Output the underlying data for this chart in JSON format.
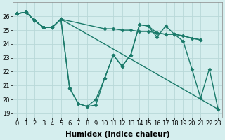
{
  "background_color": "#d5eeee",
  "grid_color": "#b8d8d8",
  "line_color": "#1a7a6a",
  "marker_style": "D",
  "marker_size": 2.5,
  "linewidth": 1.0,
  "xlabel": "Humidex (Indice chaleur)",
  "xlabel_fontsize": 7.5,
  "tick_fontsize": 6.0,
  "ylim": [
    18.7,
    27.0
  ],
  "xlim": [
    -0.5,
    23.5
  ],
  "yticks": [
    19,
    20,
    21,
    22,
    23,
    24,
    25,
    26
  ],
  "xticks": [
    0,
    1,
    2,
    3,
    4,
    5,
    6,
    7,
    8,
    9,
    10,
    11,
    12,
    13,
    14,
    15,
    16,
    17,
    18,
    19,
    20,
    21,
    22,
    23
  ],
  "series": [
    {
      "x": [
        0,
        1,
        2,
        3,
        4,
        5,
        23
      ],
      "y": [
        26.2,
        26.3,
        25.7,
        25.2,
        25.2,
        25.8,
        19.3
      ]
    },
    {
      "x": [
        0,
        1,
        2,
        3,
        4,
        5,
        10,
        11,
        12,
        13,
        14,
        15,
        16,
        17,
        18,
        19,
        20,
        21
      ],
      "y": [
        26.2,
        26.3,
        25.7,
        25.2,
        25.2,
        25.8,
        25.1,
        25.1,
        25.0,
        25.0,
        24.9,
        24.9,
        24.8,
        24.7,
        24.7,
        24.6,
        24.4,
        24.3
      ]
    },
    {
      "x": [
        0,
        1,
        2,
        3,
        4,
        5,
        6,
        7,
        8,
        9,
        10,
        11,
        12,
        13,
        14,
        15,
        16,
        17,
        18,
        21
      ],
      "y": [
        26.2,
        26.3,
        25.7,
        25.2,
        25.2,
        25.8,
        20.8,
        19.7,
        19.5,
        19.6,
        21.5,
        23.2,
        22.4,
        23.2,
        25.4,
        25.3,
        24.8,
        24.7,
        24.7,
        24.3
      ]
    },
    {
      "x": [
        0,
        1,
        2,
        3,
        4,
        5,
        6,
        7,
        8,
        9,
        10,
        11,
        12,
        13,
        14,
        15,
        16,
        17,
        18,
        19,
        20,
        21,
        22,
        23
      ],
      "y": [
        26.2,
        26.3,
        25.7,
        25.2,
        25.2,
        25.8,
        20.8,
        19.7,
        19.5,
        20.0,
        21.5,
        23.2,
        22.4,
        23.2,
        25.4,
        25.3,
        24.5,
        25.3,
        24.7,
        24.2,
        22.2,
        20.1,
        22.2,
        19.3
      ]
    }
  ]
}
